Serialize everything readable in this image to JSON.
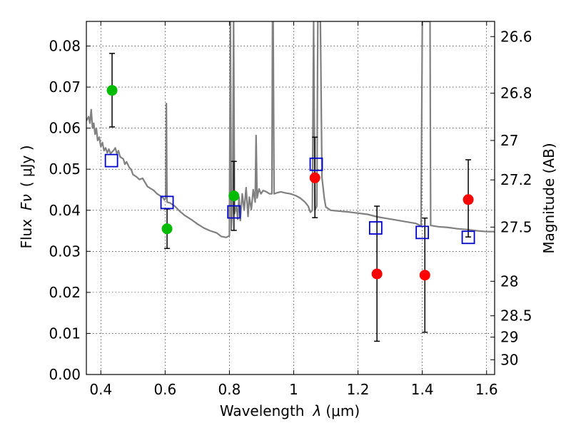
{
  "chart_data": {
    "type": "scatter",
    "xlabel_prefix": "Wavelength",
    "xlabel_symbol": "λ",
    "xlabel_unit": "(μm)",
    "ylabel_prefix": "Flux",
    "ylabel_symbol": "Fν",
    "ylabel_unit": "( μJy )",
    "y2label": "Magnitude (AB)",
    "xlim": [
      0.355,
      1.625
    ],
    "ylim": [
      0.0,
      0.086
    ],
    "grid": true,
    "x_ticks": [
      0.4,
      0.6,
      0.8,
      1.0,
      1.2,
      1.4,
      1.6
    ],
    "x_tick_labels": [
      "0.4",
      "0.6",
      "0.8",
      "1",
      "1.2",
      "1.4",
      "1.6"
    ],
    "y_ticks": [
      0.0,
      0.01,
      0.02,
      0.03,
      0.04,
      0.05,
      0.06,
      0.07,
      0.08
    ],
    "y_tick_labels": [
      "0.00",
      "0.01",
      "0.02",
      "0.03",
      "0.04",
      "0.05",
      "0.06",
      "0.07",
      "0.08"
    ],
    "mag_ticks": [
      {
        "label": "26.6",
        "flux": 0.0823
      },
      {
        "label": "26.8",
        "flux": 0.0685
      },
      {
        "label": "27",
        "flux": 0.057
      },
      {
        "label": "27.2",
        "flux": 0.0474
      },
      {
        "label": "27.5",
        "flux": 0.0359
      },
      {
        "label": "28",
        "flux": 0.0227
      },
      {
        "label": "28.5",
        "flux": 0.0143
      },
      {
        "label": "29",
        "flux": 0.0091
      },
      {
        "label": "30",
        "flux": 0.0036
      }
    ],
    "series": [
      {
        "name": "observed (green)",
        "color": "#00bb00",
        "points": [
          {
            "x": 0.435,
            "y": 0.0692,
            "yerr_lo": 0.0603,
            "yerr_hi": 0.0782
          },
          {
            "x": 0.606,
            "y": 0.0355,
            "yerr_lo": 0.0307,
            "yerr_hi": 0.0403
          },
          {
            "x": 0.814,
            "y": 0.0435,
            "yerr_lo": 0.0351,
            "yerr_hi": 0.0519
          }
        ]
      },
      {
        "name": "observed (red)",
        "color": "#ff0000",
        "points": [
          {
            "x": 1.066,
            "y": 0.0479,
            "yerr_lo": 0.0382,
            "yerr_hi": 0.0578
          },
          {
            "x": 1.259,
            "y": 0.0245,
            "yerr_lo": 0.0081,
            "yerr_hi": 0.041
          },
          {
            "x": 1.408,
            "y": 0.0242,
            "yerr_lo": 0.0103,
            "yerr_hi": 0.0381
          },
          {
            "x": 1.543,
            "y": 0.0426,
            "yerr_lo": 0.0335,
            "yerr_hi": 0.0523
          }
        ]
      },
      {
        "name": "model photometry (blue squares)",
        "color": "#0000cc",
        "points": [
          {
            "x": 0.433,
            "y": 0.0521
          },
          {
            "x": 0.606,
            "y": 0.0419
          },
          {
            "x": 0.814,
            "y": 0.0396
          },
          {
            "x": 1.07,
            "y": 0.0512
          },
          {
            "x": 1.255,
            "y": 0.0357
          },
          {
            "x": 1.4,
            "y": 0.0346
          },
          {
            "x": 1.543,
            "y": 0.0334
          }
        ]
      },
      {
        "name": "model spectrum",
        "color": "#808080",
        "line": [
          [
            0.355,
            0.0618
          ],
          [
            0.362,
            0.0628
          ],
          [
            0.366,
            0.0612
          ],
          [
            0.37,
            0.0645
          ],
          [
            0.374,
            0.06
          ],
          [
            0.378,
            0.0612
          ],
          [
            0.382,
            0.0585
          ],
          [
            0.386,
            0.06
          ],
          [
            0.39,
            0.057
          ],
          [
            0.395,
            0.0578
          ],
          [
            0.4,
            0.0555
          ],
          [
            0.405,
            0.0565
          ],
          [
            0.41,
            0.0545
          ],
          [
            0.415,
            0.0552
          ],
          [
            0.42,
            0.054
          ],
          [
            0.425,
            0.0549
          ],
          [
            0.43,
            0.0538
          ],
          [
            0.44,
            0.0546
          ],
          [
            0.445,
            0.0552
          ],
          [
            0.45,
            0.0538
          ],
          [
            0.455,
            0.0545
          ],
          [
            0.46,
            0.053
          ],
          [
            0.47,
            0.0525
          ],
          [
            0.475,
            0.0512
          ],
          [
            0.48,
            0.0518
          ],
          [
            0.488,
            0.0505
          ],
          [
            0.495,
            0.0498
          ],
          [
            0.5,
            0.0487
          ],
          [
            0.51,
            0.0482
          ],
          [
            0.52,
            0.0475
          ],
          [
            0.53,
            0.0478
          ],
          [
            0.545,
            0.0458
          ],
          [
            0.555,
            0.0453
          ],
          [
            0.565,
            0.0448
          ],
          [
            0.575,
            0.044
          ],
          [
            0.585,
            0.0435
          ],
          [
            0.594,
            0.043
          ],
          [
            0.598,
            0.0425
          ],
          [
            0.602,
            0.043
          ],
          [
            0.604,
            0.066
          ],
          [
            0.606,
            0.042
          ],
          [
            0.615,
            0.0418
          ],
          [
            0.63,
            0.041
          ],
          [
            0.645,
            0.0398
          ],
          [
            0.66,
            0.0388
          ],
          [
            0.68,
            0.0378
          ],
          [
            0.7,
            0.0367
          ],
          [
            0.72,
            0.0357
          ],
          [
            0.74,
            0.035
          ],
          [
            0.76,
            0.0345
          ],
          [
            0.775,
            0.0336
          ],
          [
            0.79,
            0.0334
          ],
          [
            0.8,
            0.0338
          ],
          [
            0.803,
            0.086
          ],
          [
            0.806,
            0.0352
          ],
          [
            0.81,
            0.04
          ],
          [
            0.813,
            0.086
          ],
          [
            0.816,
            0.0392
          ],
          [
            0.822,
            0.041
          ],
          [
            0.826,
            0.0378
          ],
          [
            0.83,
            0.0432
          ],
          [
            0.834,
            0.0375
          ],
          [
            0.84,
            0.044
          ],
          [
            0.846,
            0.04
          ],
          [
            0.852,
            0.0455
          ],
          [
            0.858,
            0.0385
          ],
          [
            0.862,
            0.0432
          ],
          [
            0.868,
            0.0402
          ],
          [
            0.874,
            0.045
          ],
          [
            0.88,
            0.042
          ],
          [
            0.883,
            0.0582
          ],
          [
            0.886,
            0.043
          ],
          [
            0.892,
            0.0452
          ],
          [
            0.898,
            0.044
          ],
          [
            0.905,
            0.0448
          ],
          [
            0.915,
            0.0445
          ],
          [
            0.925,
            0.044
          ],
          [
            0.932,
            0.044
          ],
          [
            0.934,
            0.086
          ],
          [
            0.936,
            0.086
          ],
          [
            0.939,
            0.044
          ],
          [
            0.95,
            0.0443
          ],
          [
            0.96,
            0.0445
          ],
          [
            0.975,
            0.0442
          ],
          [
            0.99,
            0.044
          ],
          [
            1.005,
            0.0436
          ],
          [
            1.02,
            0.043
          ],
          [
            1.035,
            0.042
          ],
          [
            1.045,
            0.041
          ],
          [
            1.052,
            0.0395
          ],
          [
            1.058,
            0.04
          ],
          [
            1.062,
            0.086
          ],
          [
            1.066,
            0.04
          ],
          [
            1.072,
            0.041
          ],
          [
            1.075,
            0.086
          ],
          [
            1.083,
            0.086
          ],
          [
            1.088,
            0.048
          ],
          [
            1.095,
            0.043
          ],
          [
            1.1,
            0.0408
          ],
          [
            1.115,
            0.04
          ],
          [
            1.14,
            0.0398
          ],
          [
            1.17,
            0.0396
          ],
          [
            1.2,
            0.0393
          ],
          [
            1.23,
            0.039
          ],
          [
            1.26,
            0.0384
          ],
          [
            1.29,
            0.038
          ],
          [
            1.32,
            0.0376
          ],
          [
            1.35,
            0.0372
          ],
          [
            1.38,
            0.0368
          ],
          [
            1.396,
            0.0362
          ],
          [
            1.4,
            0.086
          ],
          [
            1.418,
            0.086
          ],
          [
            1.424,
            0.086
          ],
          [
            1.426,
            0.0363
          ],
          [
            1.45,
            0.036
          ],
          [
            1.48,
            0.0358
          ],
          [
            1.51,
            0.0355
          ],
          [
            1.54,
            0.0353
          ],
          [
            1.57,
            0.035
          ],
          [
            1.6,
            0.0348
          ],
          [
            1.625,
            0.0348
          ]
        ]
      }
    ]
  }
}
